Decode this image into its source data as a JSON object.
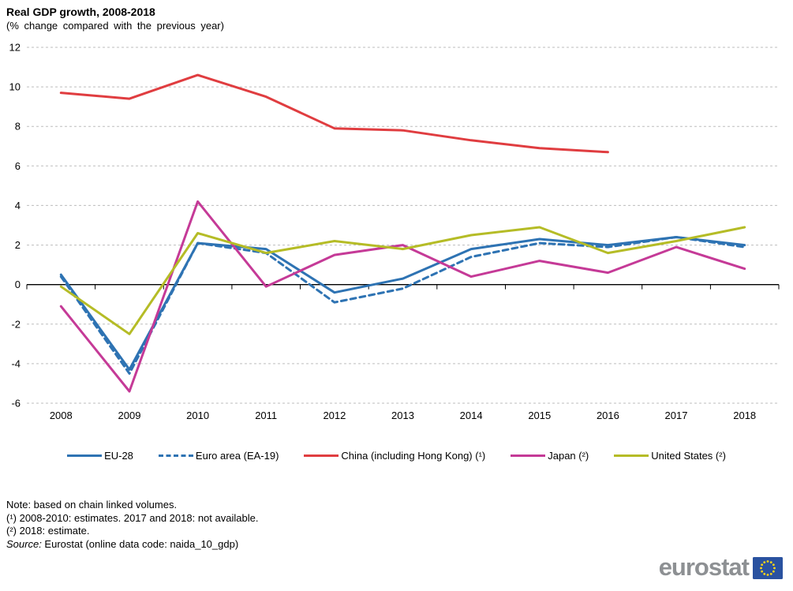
{
  "header": {
    "title": "Real GDP growth, 2008-2018",
    "subtitle": "(% change compared with the previous year)"
  },
  "chart_data": {
    "type": "line",
    "title": "Real GDP growth, 2008-2018",
    "subtitle": "(% change compared with the previous year)",
    "categories": [
      "2008",
      "2009",
      "2010",
      "2011",
      "2012",
      "2013",
      "2014",
      "2015",
      "2016",
      "2017",
      "2018"
    ],
    "series": [
      {
        "name": "EU-28",
        "color": "#2e73b3",
        "dash": null,
        "values": [
          0.5,
          -4.3,
          2.1,
          1.8,
          -0.4,
          0.3,
          1.8,
          2.3,
          2.0,
          2.4,
          2.0
        ]
      },
      {
        "name": "Euro area (EA-19)",
        "color": "#2e73b3",
        "dash": "7,5",
        "values": [
          0.4,
          -4.5,
          2.1,
          1.6,
          -0.9,
          -0.2,
          1.4,
          2.1,
          1.9,
          2.4,
          1.9
        ]
      },
      {
        "name": "China (including Hong Kong) (¹)",
        "color": "#e03d40",
        "dash": null,
        "values": [
          9.7,
          9.4,
          10.6,
          9.5,
          7.9,
          7.8,
          7.3,
          6.9,
          6.7,
          null,
          null
        ]
      },
      {
        "name": "Japan (²)",
        "color": "#c53a97",
        "dash": null,
        "values": [
          -1.1,
          -5.4,
          4.2,
          -0.1,
          1.5,
          2.0,
          0.4,
          1.2,
          0.6,
          1.9,
          0.8
        ]
      },
      {
        "name": "United States (²)",
        "color": "#b5bc26",
        "dash": null,
        "values": [
          -0.1,
          -2.5,
          2.6,
          1.6,
          2.2,
          1.8,
          2.5,
          2.9,
          1.6,
          2.2,
          2.9
        ]
      }
    ],
    "ylim": [
      -6,
      12
    ],
    "ytick_step": 2,
    "xlabel": "",
    "ylabel": "",
    "grid": "horizontal-dashed",
    "legend_position": "bottom",
    "axis_color": "#000000",
    "gridline_color": "#bdbdbd"
  },
  "notes": {
    "lines": [
      "Note: based on chain linked volumes.",
      "(¹) 2008-2010: estimates. 2017 and 2018: not available.",
      "(²) 2018: estimate."
    ],
    "source_prefix": "Source:",
    "source_text": " Eurostat (online data code: naida_10_gdp)"
  },
  "logo": {
    "text": "eurostat",
    "flag_blue": "#2a52a0",
    "star_yellow": "#ffd617"
  }
}
